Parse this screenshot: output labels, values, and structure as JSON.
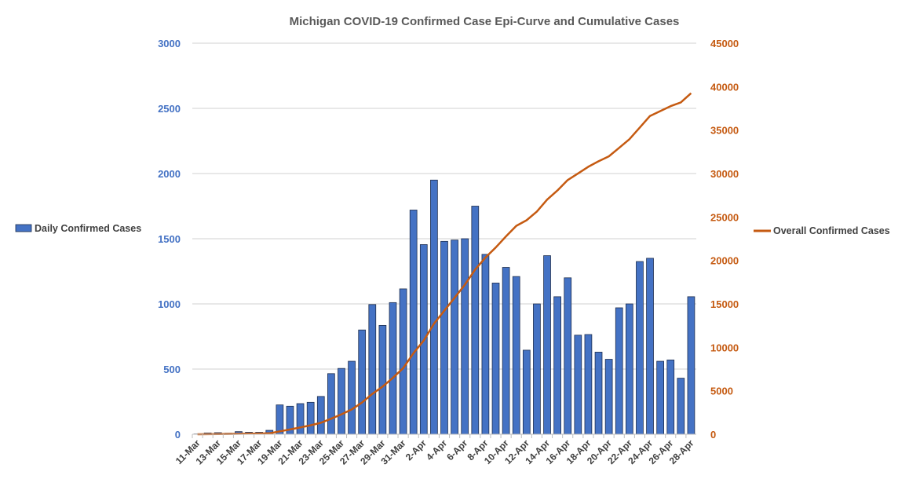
{
  "chart_data": {
    "type": "bar+line",
    "title": "Michigan COVID-19 Confirmed Case Epi-Curve and Cumulative Cases",
    "categories": [
      "11-Mar",
      "12-Mar",
      "13-Mar",
      "14-Mar",
      "15-Mar",
      "16-Mar",
      "17-Mar",
      "18-Mar",
      "19-Mar",
      "20-Mar",
      "21-Mar",
      "22-Mar",
      "23-Mar",
      "24-Mar",
      "25-Mar",
      "26-Mar",
      "27-Mar",
      "28-Mar",
      "29-Mar",
      "30-Mar",
      "31-Mar",
      "1-Apr",
      "2-Apr",
      "3-Apr",
      "4-Apr",
      "5-Apr",
      "6-Apr",
      "7-Apr",
      "8-Apr",
      "9-Apr",
      "10-Apr",
      "11-Apr",
      "12-Apr",
      "13-Apr",
      "14-Apr",
      "15-Apr",
      "16-Apr",
      "17-Apr",
      "18-Apr",
      "19-Apr",
      "20-Apr",
      "21-Apr",
      "22-Apr",
      "23-Apr",
      "24-Apr",
      "25-Apr",
      "26-Apr",
      "27-Apr",
      "28-Apr"
    ],
    "series": [
      {
        "name": "Daily Confirmed Cases",
        "type": "bar",
        "axis": "left",
        "color": "#4472C4",
        "values": [
          2,
          10,
          12,
          8,
          20,
          15,
          15,
          30,
          225,
          215,
          235,
          245,
          290,
          465,
          505,
          560,
          800,
          995,
          835,
          1010,
          1115,
          1720,
          1455,
          1950,
          1480,
          1490,
          1500,
          1750,
          1380,
          1160,
          1280,
          1210,
          645,
          1000,
          1370,
          1055,
          1200,
          760,
          765,
          630,
          575,
          970,
          1000,
          1325,
          1350,
          560,
          570,
          430,
          1055
        ]
      },
      {
        "name": "Overall Confirmed Cases",
        "type": "line",
        "axis": "right",
        "color": "#C55A11",
        "values": [
          2,
          12,
          24,
          32,
          52,
          67,
          82,
          112,
          337,
          552,
          787,
          1032,
          1322,
          1787,
          2292,
          2852,
          3652,
          4647,
          5482,
          6492,
          7607,
          9327,
          10782,
          12732,
          14212,
          15702,
          17202,
          18952,
          20332,
          21492,
          22772,
          23982,
          24627,
          25627,
          26997,
          28052,
          29252,
          30012,
          30777,
          31407,
          31982,
          32952,
          33952,
          35277,
          36627,
          37187,
          37757,
          38187,
          39242
        ]
      }
    ],
    "y_left": {
      "range": [
        0,
        3000
      ],
      "ticks": [
        "0",
        "500",
        "1000",
        "1500",
        "2000",
        "2500",
        "3000"
      ],
      "color": "#4472C4"
    },
    "y_right": {
      "range": [
        0,
        45000
      ],
      "ticks": [
        "0",
        "5000",
        "10000",
        "15000",
        "20000",
        "25000",
        "30000",
        "35000",
        "40000",
        "45000"
      ],
      "color": "#C55A11"
    },
    "grid": true,
    "legend": {
      "left": "Daily Confirmed Cases",
      "right": "Overall Confirmed Cases"
    }
  }
}
